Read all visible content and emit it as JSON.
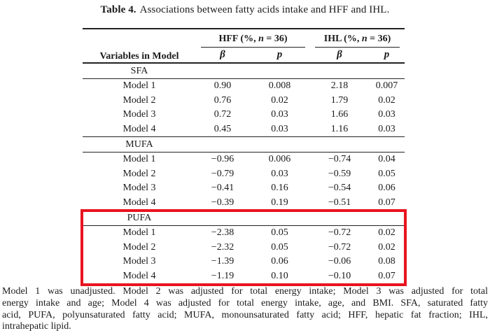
{
  "title": {
    "label": "Table 4.",
    "text": "Associations between fatty acids intake and HFF and IHL."
  },
  "table": {
    "row_header": "Variables in Model",
    "groups": [
      {
        "prefix": "HFF (%, ",
        "italic": "n",
        "suffix": " = 36)"
      },
      {
        "prefix": "IHL (%, ",
        "italic": "n",
        "suffix": " = 36)"
      }
    ],
    "subheaders": [
      "β",
      "p",
      "β",
      "p"
    ],
    "sections": [
      {
        "label": "SFA",
        "highlighted": false,
        "rows": [
          {
            "label": "Model 1",
            "values": [
              "0.90",
              "0.008",
              "2.18",
              "0.007"
            ]
          },
          {
            "label": "Model 2",
            "values": [
              "0.76",
              "0.02",
              "1.79",
              "0.02"
            ]
          },
          {
            "label": "Model 3",
            "values": [
              "0.72",
              "0.03",
              "1.66",
              "0.03"
            ]
          },
          {
            "label": "Model 4",
            "values": [
              "0.45",
              "0.03",
              "1.16",
              "0.03"
            ]
          }
        ]
      },
      {
        "label": "MUFA",
        "highlighted": false,
        "rows": [
          {
            "label": "Model 1",
            "values": [
              "−0.96",
              "0.006",
              "−0.74",
              "0.04"
            ]
          },
          {
            "label": "Model 2",
            "values": [
              "−0.79",
              "0.03",
              "−0.59",
              "0.05"
            ]
          },
          {
            "label": "Model 3",
            "values": [
              "−0.41",
              "0.16",
              "−0.54",
              "0.06"
            ]
          },
          {
            "label": "Model 4",
            "values": [
              "−0.39",
              "0.19",
              "−0.51",
              "0.07"
            ]
          }
        ]
      },
      {
        "label": "PUFA",
        "highlighted": true,
        "rows": [
          {
            "label": "Model 1",
            "values": [
              "−2.38",
              "0.05",
              "−0.72",
              "0.02"
            ]
          },
          {
            "label": "Model 2",
            "values": [
              "−2.32",
              "0.05",
              "−0.72",
              "0.02"
            ]
          },
          {
            "label": "Model 3",
            "values": [
              "−1.39",
              "0.06",
              "−0.06",
              "0.08"
            ]
          },
          {
            "label": "Model 4",
            "values": [
              "−1.19",
              "0.10",
              "−0.10",
              "0.07"
            ]
          }
        ]
      }
    ]
  },
  "footnote": {
    "lines": [
      "Model 1 was unadjusted.  Model 2 was adjusted for total energy intake; Model 3 was adjusted for total",
      "energy intake and age; Model 4 was adjusted for total energy intake, age, and BMI. SFA, saturated fatty",
      "acid, PUFA, polyunsaturated fatty acid; MUFA, monounsaturated fatty acid; HFF, hepatic fat fraction; IHL,",
      "intrahepatic lipid."
    ]
  },
  "colors": {
    "text": "#1b1b1b",
    "rule": "#222222",
    "highlight_box": "#e8141f",
    "background": "#ffffff"
  }
}
